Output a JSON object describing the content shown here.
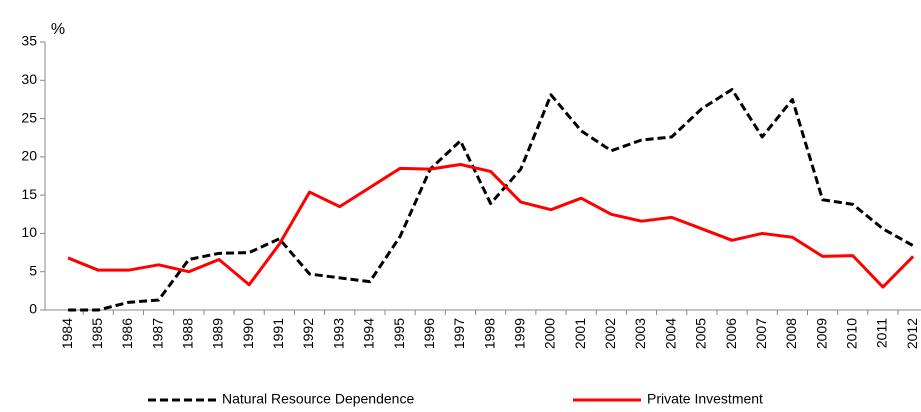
{
  "chart_data": {
    "type": "line",
    "y_label": "%",
    "categories": [
      "1984",
      "1985",
      "1986",
      "1987",
      "1988",
      "1989",
      "1990",
      "1991",
      "1992",
      "1993",
      "1994",
      "1995",
      "1996",
      "1997",
      "1998",
      "1999",
      "2000",
      "2001",
      "2002",
      "2003",
      "2004",
      "2005",
      "2006",
      "2007",
      "2008",
      "2009",
      "2010",
      "2011",
      "2012"
    ],
    "series": [
      {
        "name": "Natural Resource Dependence",
        "color": "#000000",
        "dash": "dashed",
        "values": [
          0,
          0,
          1.0,
          1.3,
          6.6,
          7.4,
          7.5,
          9.3,
          4.7,
          4.2,
          3.7,
          9.6,
          18.4,
          22.1,
          13.9,
          18.4,
          28.1,
          23.4,
          20.8,
          22.2,
          22.6,
          26.3,
          28.8,
          22.6,
          27.5,
          14.4,
          13.8,
          10.6,
          8.4
        ]
      },
      {
        "name": "Private Investment",
        "color": "#ff0000",
        "dash": "solid",
        "values": [
          6.8,
          5.2,
          5.2,
          5.9,
          5.0,
          6.6,
          3.3,
          8.6,
          15.4,
          13.5,
          16.0,
          18.5,
          18.4,
          19.0,
          18.1,
          14.1,
          13.1,
          14.6,
          12.5,
          11.6,
          12.1,
          10.6,
          9.1,
          10.0,
          9.5,
          7.0,
          7.1,
          3.0,
          7.0
        ]
      }
    ],
    "ylim": [
      0,
      35
    ],
    "yticks": [
      0,
      5,
      10,
      15,
      20,
      25,
      30,
      35
    ],
    "grid": false,
    "legend": "bottom"
  }
}
